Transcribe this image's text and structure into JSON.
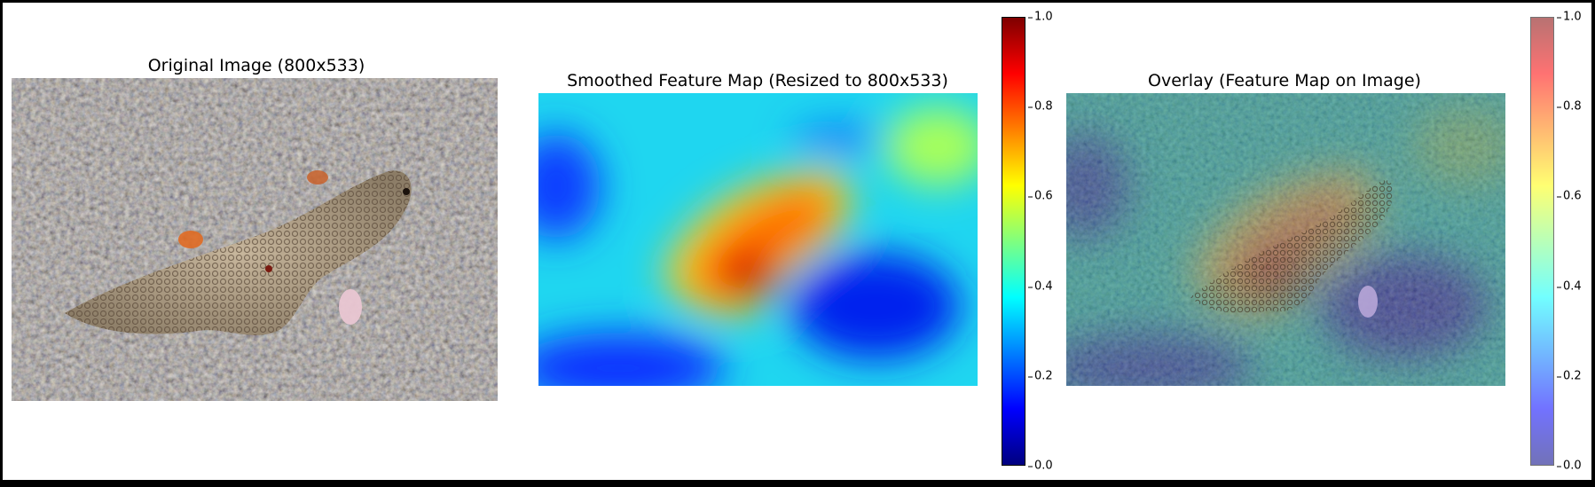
{
  "panels": {
    "original": {
      "title": "Original Image (800x533)"
    },
    "feature_map": {
      "title": "Smoothed Feature Map (Resized to 800x533)"
    },
    "overlay": {
      "title": "Overlay (Feature Map on Image)"
    }
  },
  "colorbar": {
    "colormap": "jet",
    "range": [
      0.0,
      1.0
    ],
    "ticks": [
      "1.0",
      "0.8",
      "0.6",
      "0.4",
      "0.2",
      "0.0"
    ]
  },
  "colors": {
    "jet_stops": [
      "#00007f",
      "#0000ff",
      "#00ffff",
      "#ffff00",
      "#ff0000",
      "#7f0000"
    ],
    "background": "#ffffff",
    "frame": "#000000"
  },
  "chart_data": {
    "type": "heatmap",
    "colormap": "jet",
    "value_range": [
      0.0,
      1.0
    ],
    "colorbar_ticks": [
      0.0,
      0.2,
      0.4,
      0.6,
      0.8,
      1.0
    ]
  }
}
